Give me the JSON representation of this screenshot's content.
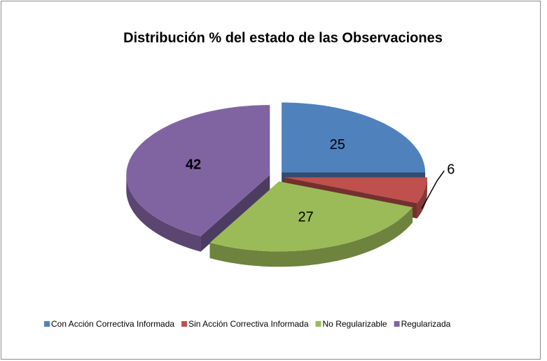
{
  "chart_data": {
    "type": "pie3d",
    "title": "Distribución % del estado de las Observaciones",
    "categories": [
      "Con Acción Correctiva Informada",
      "Sin Acción Correctiva Informada",
      "No Regularizable",
      "Regularizada"
    ],
    "values": [
      25,
      6,
      27,
      42
    ],
    "colors": [
      "#4f81bd",
      "#c0504d",
      "#9bbb59",
      "#8064a2"
    ],
    "legend": "bottom"
  }
}
